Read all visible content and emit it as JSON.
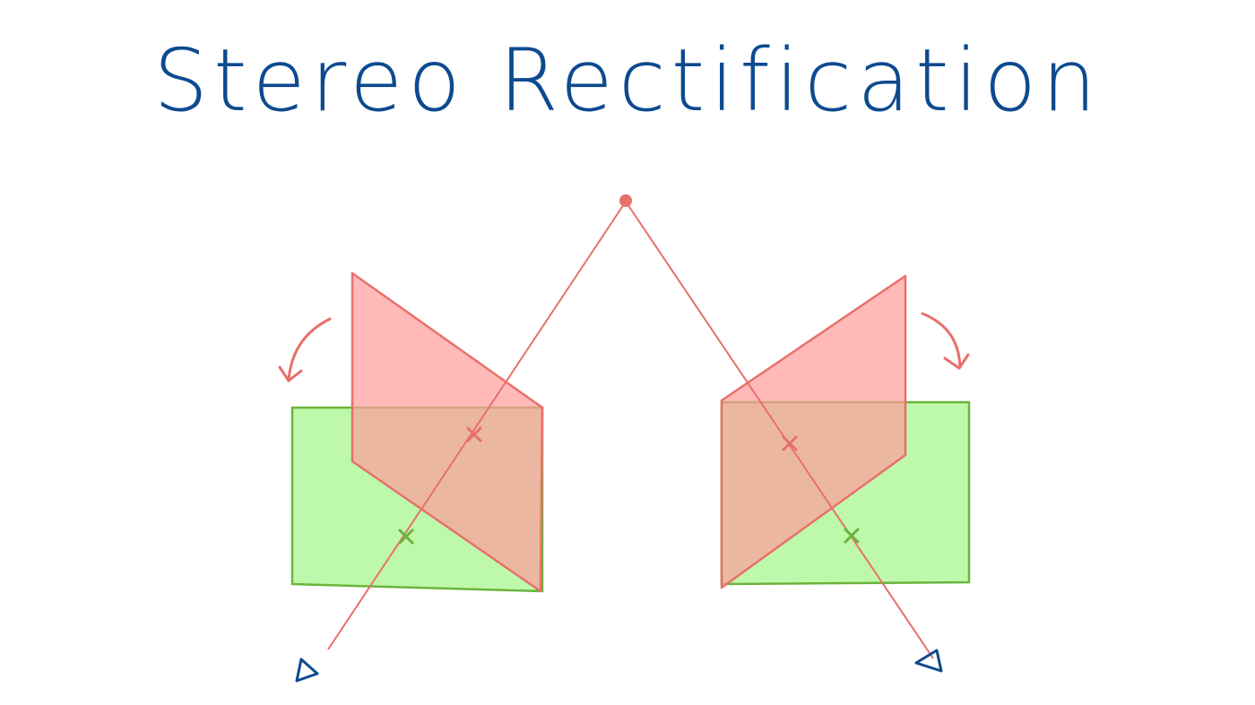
{
  "title": "Stereo Rectification",
  "colors": {
    "title": "#0d4a8f",
    "original_plane_fill": "#ff9b9b",
    "original_plane_stroke": "#e8706a",
    "rectified_plane_fill": "#a8f58f",
    "rectified_plane_stroke": "#6bb43c",
    "ray": "#e8706a",
    "scene_point": "#e8706a",
    "camera_marker": "#0d4a8f",
    "original_mark": "#e8706a",
    "rectified_mark": "#6bb43c",
    "rotation_arrow": "#e8706a"
  },
  "icons": {
    "left_camera": "left-camera-icon",
    "right_camera": "right-camera-icon",
    "left_rotation": "left-rotation-arrow-icon",
    "right_rotation": "right-rotation-arrow-icon"
  }
}
